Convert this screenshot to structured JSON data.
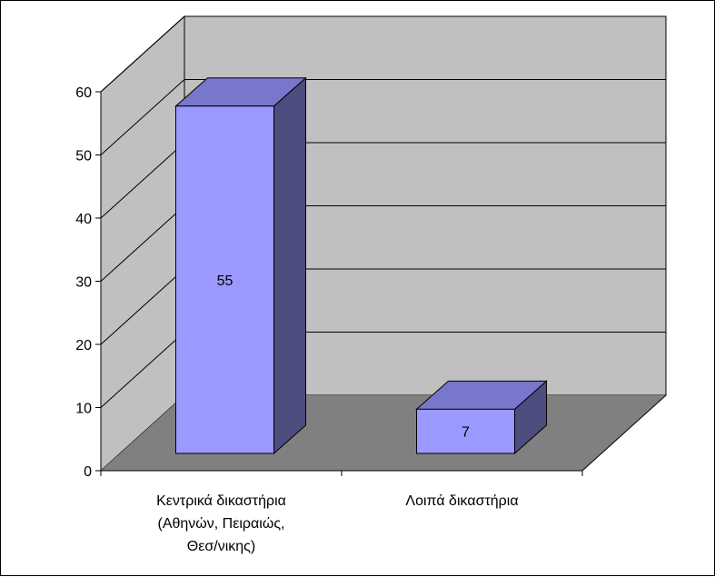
{
  "chart_data": {
    "type": "bar",
    "style": "3d-column",
    "categories": [
      [
        "Κεντρικά δικαστήρια",
        "(Αθηνών, Πειραιώς,",
        "Θεσ/νικης)"
      ],
      [
        "Λοιπά δικαστήρια"
      ]
    ],
    "values": [
      55,
      7
    ],
    "data_labels": [
      "55",
      "7"
    ],
    "ylim": [
      0,
      60
    ],
    "yticks": [
      0,
      10,
      20,
      30,
      40,
      50,
      60
    ],
    "ytick_labels": [
      "0",
      "10",
      "20",
      "30",
      "40",
      "50",
      "60"
    ],
    "grid": true,
    "legend": "none",
    "title": "",
    "xlabel": "",
    "ylabel": ""
  },
  "colors": {
    "bar_front": "#9999ff",
    "bar_top": "#7777cc",
    "bar_side": "#4d4d80",
    "back_wall": "#c0c0c0",
    "side_wall": "#c0c0c0",
    "floor": "#808080",
    "gridline": "#000000"
  }
}
